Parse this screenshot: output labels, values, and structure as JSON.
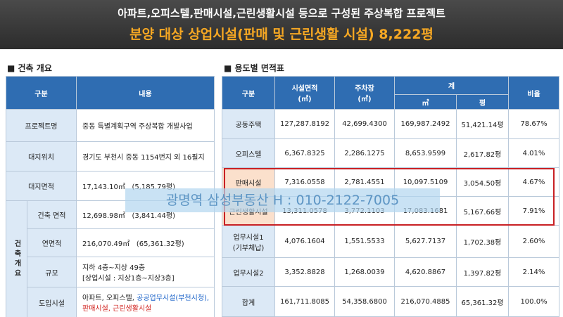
{
  "banner": {
    "line1": "아파트,오피스텔,판매시설,근린생활시설 등으로 구성된 주상복합 프로젝트",
    "line2": "분양 대상 상업시설(판매 및 근린생활 시설) 8,222평"
  },
  "left": {
    "title": "■ 건축 개요",
    "header": [
      "구분",
      "내용"
    ],
    "rows": [
      {
        "label": "프로젝트명",
        "value": "중동 특별계획구역 주상복합 개발사업"
      },
      {
        "label": "대지위치",
        "value": "경기도 부천시 중동 1154번지 외 16필지"
      },
      {
        "label": "대지면적",
        "value": [
          "17,143.10㎡",
          "(5,185.79평)"
        ]
      }
    ],
    "group": "건축개요",
    "group_rows": [
      {
        "label": "건축 면적",
        "value": [
          "12,698.98㎡",
          "(3,841.44평)"
        ]
      },
      {
        "label": "연면적",
        "value": [
          "216,070.49㎡",
          "(65,361.32평)"
        ]
      },
      {
        "label": "규모",
        "value": [
          "지하 4층~지상 49층",
          "[상업시설 : 지상1층~지상3층]"
        ]
      },
      {
        "label": "도입시설",
        "value": [
          "아파트, 오피스텔, ",
          "공공업무시설(부천시청),",
          "판매시설, 근린생활시설"
        ]
      }
    ]
  },
  "right": {
    "title": "■ 용도별 면적표",
    "header": {
      "type": "구분",
      "facility": "시설면적\n(㎡)",
      "parking": "주차장\n(㎡)",
      "total": "계",
      "total_m2": "㎡",
      "total_py": "평",
      "ratio": "비율"
    },
    "rows": [
      [
        "공동주택",
        "127,287.8192",
        "42,699.4300",
        "169,987.2492",
        "51,421.14평",
        "78.67%"
      ],
      [
        "오피스텔",
        "6,367.8325",
        "2,286.1275",
        "8,653.9599",
        "2,617.82평",
        "4.01%"
      ],
      [
        "판매시설",
        "7,316.0558",
        "2,781.4551",
        "10,097.5109",
        "3,054.50평",
        "4.67%"
      ],
      [
        "근린생활시설",
        "13,311.0578",
        "3,772.1103",
        "17,083.1681",
        "5,167.66평",
        "7.91%"
      ],
      [
        "업무시설1\n(기부체납)",
        "4,076.1604",
        "1,551.5533",
        "5,627.7137",
        "1,702.38평",
        "2.60%"
      ],
      [
        "업무시설2",
        "3,352.8828",
        "1,268.0039",
        "4,620.8867",
        "1,397.82평",
        "2.14%"
      ],
      [
        "합계",
        "161,711.8085",
        "54,358.6800",
        "216,070.4885",
        "65,361.32평",
        "100.0%"
      ]
    ]
  },
  "watermark": "광명역 삼성부동산 H : 010-2122-7005"
}
